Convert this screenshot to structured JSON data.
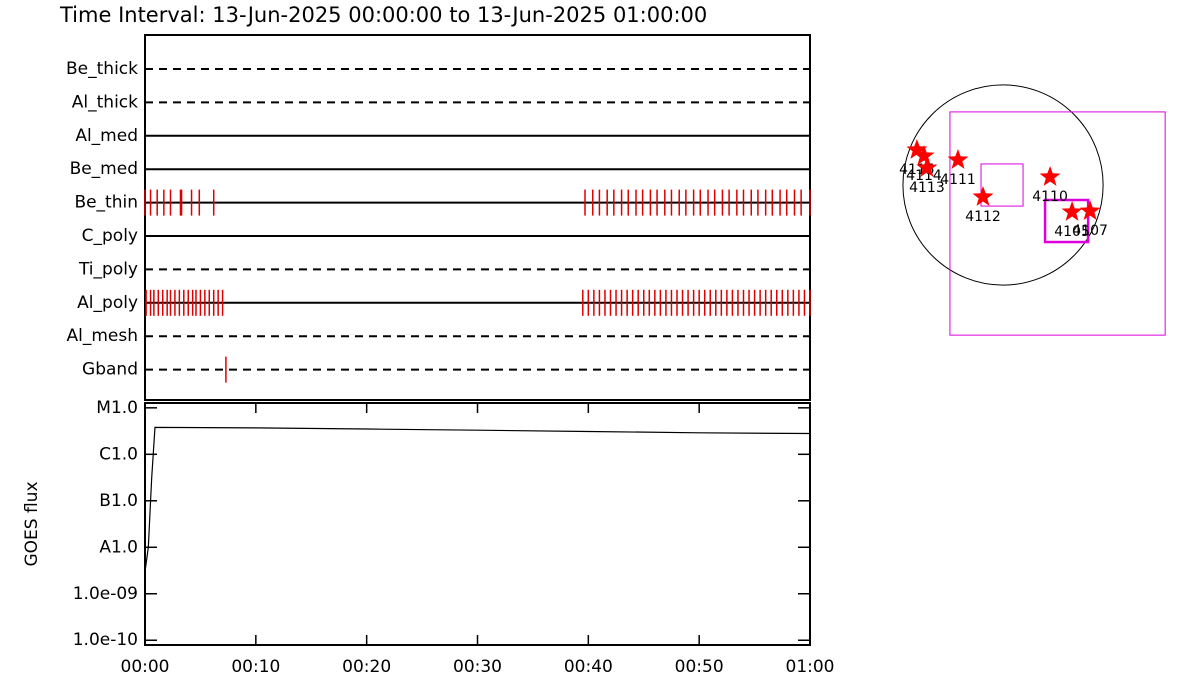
{
  "chart_data": [
    {
      "type": "timeline",
      "title": "Time Interval: 13-Jun-2025 00:00:00 to 13-Jun-2025 01:00:00",
      "color": "#dd0000",
      "xlim": [
        0,
        60
      ],
      "filters": [
        {
          "name": "Be_thick",
          "style": "dashed",
          "times": []
        },
        {
          "name": "Al_thick",
          "style": "dashed",
          "times": []
        },
        {
          "name": "Al_med",
          "style": "solid",
          "times": []
        },
        {
          "name": "Be_med",
          "style": "solid",
          "times": []
        },
        {
          "name": "Be_thin",
          "style": "solid",
          "times": [
            0,
            0.5,
            1.1,
            1.7,
            2.3,
            3.2,
            3.3,
            4.2,
            4.9,
            6.2,
            39.7,
            40.4,
            41.0,
            41.7,
            42.3,
            43.0,
            43.6,
            44.3,
            44.9,
            45.6,
            46.2,
            46.9,
            47.5,
            48.2,
            48.8,
            49.5,
            50.1,
            50.8,
            51.4,
            52.1,
            52.7,
            53.4,
            54.0,
            54.7,
            55.3,
            56.0,
            56.6,
            57.3,
            57.9,
            58.6,
            59.2,
            60.0
          ]
        },
        {
          "name": "C_poly",
          "style": "solid",
          "times": []
        },
        {
          "name": "Ti_poly",
          "style": "dashed",
          "times": []
        },
        {
          "name": "Al_poly",
          "style": "solid",
          "times": [
            0.1,
            0.5,
            0.8,
            1.2,
            1.6,
            2.0,
            2.3,
            2.7,
            3.1,
            3.5,
            3.9,
            4.3,
            4.6,
            5.0,
            5.4,
            5.8,
            6.2,
            6.6,
            7.0,
            39.5,
            40.0,
            40.5,
            41.0,
            41.5,
            42.0,
            42.5,
            43.0,
            43.5,
            44.0,
            44.5,
            45.0,
            45.5,
            46.0,
            46.5,
            47.0,
            47.5,
            48.0,
            48.5,
            49.0,
            49.5,
            50.0,
            50.5,
            51.0,
            51.5,
            52.0,
            52.5,
            53.0,
            53.5,
            54.0,
            54.5,
            55.0,
            55.5,
            56.0,
            56.5,
            57.0,
            57.5,
            58.0,
            58.5,
            59.0,
            59.5,
            60.0
          ]
        },
        {
          "name": "Al_mesh",
          "style": "dashed",
          "times": []
        },
        {
          "name": "Gband",
          "style": "dashed",
          "times": [
            7.3
          ]
        }
      ]
    },
    {
      "type": "line",
      "ylabel": "GOES flux",
      "log": true,
      "color": "#000000",
      "x": [
        0,
        0.3,
        0.6,
        0.9,
        10,
        20,
        30,
        40,
        50,
        60
      ],
      "values": [
        3e-09,
        1e-08,
        3e-07,
        3.8e-06,
        3.7e-06,
        3.5e-06,
        3.3e-06,
        3.1e-06,
        2.9e-06,
        2.8e-06
      ],
      "xlim": [
        0,
        60
      ],
      "xticks": [
        {
          "value": 0,
          "label": "00:00"
        },
        {
          "value": 10,
          "label": "00:10"
        },
        {
          "value": 20,
          "label": "00:20"
        },
        {
          "value": 30,
          "label": "00:30"
        },
        {
          "value": 40,
          "label": "00:40"
        },
        {
          "value": 50,
          "label": "00:50"
        },
        {
          "value": 60,
          "label": "01:00"
        }
      ],
      "ylim": [
        7.9e-11,
        1.27e-05
      ],
      "yticks": [
        {
          "value": 1e-10,
          "label": "1.0e-10"
        },
        {
          "value": 1e-09,
          "label": "1.0e-09"
        },
        {
          "value": 1e-08,
          "label": "A1.0"
        },
        {
          "value": 1e-07,
          "label": "B1.0"
        },
        {
          "value": 1e-06,
          "label": "C1.0"
        },
        {
          "value": 1e-05,
          "label": "M1.0"
        }
      ]
    },
    {
      "type": "map",
      "solar_radius": 960,
      "xlim": [
        -1180,
        1870
      ],
      "ylim": [
        -1500,
        1100
      ],
      "star_color": "#ff0000",
      "fov_color": "#dd00dd",
      "regions": [
        {
          "label": "4115",
          "x": -826,
          "y": 336
        },
        {
          "label": "4114",
          "x": -758,
          "y": 278
        },
        {
          "label": "4113",
          "x": -730,
          "y": 163
        },
        {
          "label": "4111",
          "x": -432,
          "y": 240
        },
        {
          "label": "4112",
          "x": -192,
          "y": -115
        },
        {
          "label": "4110",
          "x": 451,
          "y": 77
        },
        {
          "label": "4105",
          "x": 662,
          "y": -259
        },
        {
          "label": "4107",
          "x": 835,
          "y": -250
        }
      ],
      "fovs": [
        {
          "x": [
            -509,
            1555
          ],
          "y": [
            701,
            -1440
          ],
          "highlight": false
        },
        {
          "x": [
            -211,
            192
          ],
          "y": [
            202,
            -202
          ],
          "highlight": false
        },
        {
          "x": [
            403,
            816
          ],
          "y": [
            -144,
            -547
          ],
          "highlight": true
        }
      ]
    }
  ]
}
